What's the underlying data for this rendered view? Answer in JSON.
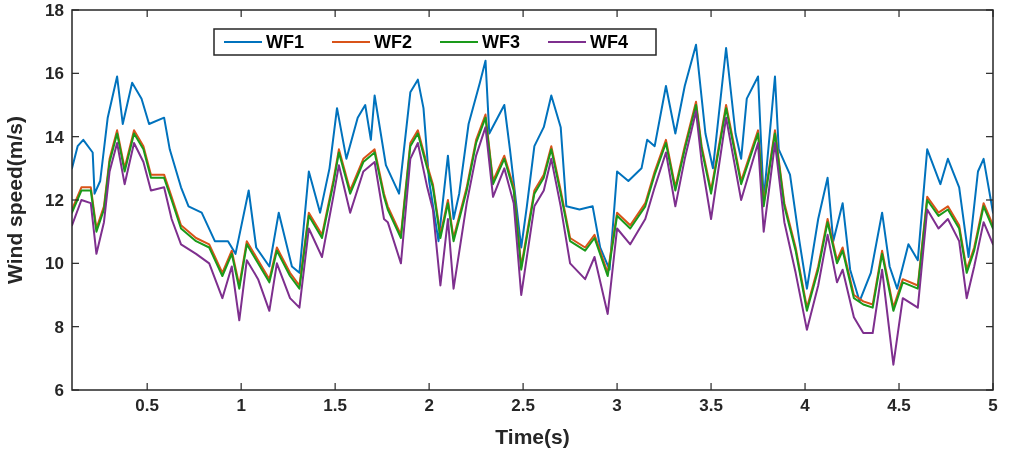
{
  "chart_data": {
    "type": "line",
    "xlabel": "Time(s)",
    "ylabel": "Wind speed(m/s)",
    "xlim": [
      0.1,
      5
    ],
    "xticks": [
      0.5,
      1,
      1.5,
      2,
      2.5,
      3,
      3.5,
      4,
      4.5,
      5
    ],
    "ylim": [
      6,
      18
    ],
    "yticks": [
      6,
      8,
      10,
      12,
      14,
      16,
      18
    ],
    "grid": false,
    "legend": "top",
    "line_style": "solid",
    "marker": "none",
    "series": [
      {
        "name": "WF1",
        "color": "#0072bd",
        "x": [
          0.1,
          0.13,
          0.16,
          0.21,
          0.22,
          0.25,
          0.29,
          0.34,
          0.37,
          0.42,
          0.47,
          0.51,
          0.59,
          0.62,
          0.68,
          0.72,
          0.79,
          0.86,
          0.93,
          0.97,
          1.04,
          1.08,
          1.15,
          1.2,
          1.27,
          1.31,
          1.36,
          1.42,
          1.47,
          1.51,
          1.56,
          1.62,
          1.66,
          1.69,
          1.71,
          1.77,
          1.84,
          1.9,
          1.94,
          1.97,
          2.0,
          2.05,
          2.1,
          2.13,
          2.16,
          2.21,
          2.27,
          2.3,
          2.32,
          2.4,
          2.43,
          2.49,
          2.52,
          2.56,
          2.61,
          2.65,
          2.7,
          2.73,
          2.8,
          2.87,
          2.91,
          2.96,
          3.0,
          3.06,
          3.13,
          3.16,
          3.2,
          3.26,
          3.31,
          3.36,
          3.42,
          3.47,
          3.51,
          3.58,
          3.63,
          3.66,
          3.69,
          3.75,
          3.78,
          3.84,
          3.86,
          3.92,
          3.97,
          4.01,
          4.07,
          4.12,
          4.15,
          4.2,
          4.24,
          4.29,
          4.35,
          4.41,
          4.45,
          4.49,
          4.55,
          4.6,
          4.65,
          4.72,
          4.76,
          4.82,
          4.87,
          4.92,
          4.95,
          5.0
        ],
        "values": [
          13.0,
          13.7,
          13.9,
          13.5,
          12.2,
          12.6,
          14.6,
          15.9,
          14.4,
          15.7,
          15.2,
          14.4,
          14.6,
          13.6,
          12.4,
          11.8,
          11.6,
          10.7,
          10.7,
          10.3,
          12.3,
          10.5,
          9.9,
          11.6,
          9.9,
          9.7,
          12.9,
          11.6,
          13.0,
          14.9,
          13.3,
          14.6,
          15.0,
          13.9,
          15.3,
          13.1,
          12.2,
          15.4,
          15.8,
          14.9,
          12.6,
          10.7,
          13.4,
          11.4,
          12.2,
          14.4,
          15.7,
          16.4,
          14.1,
          15.0,
          13.6,
          10.5,
          11.8,
          13.7,
          14.3,
          15.3,
          14.3,
          11.8,
          11.7,
          11.8,
          10.5,
          9.8,
          12.9,
          12.6,
          13.0,
          13.9,
          13.7,
          15.6,
          14.1,
          15.6,
          16.9,
          14.1,
          13.0,
          16.8,
          14.1,
          13.3,
          15.2,
          15.9,
          12.0,
          15.9,
          13.6,
          12.8,
          10.7,
          9.2,
          11.4,
          12.7,
          10.7,
          11.9,
          9.8,
          8.8,
          9.7,
          11.6,
          9.9,
          9.2,
          10.6,
          10.1,
          13.6,
          12.5,
          13.3,
          12.4,
          10.2,
          12.9,
          13.3,
          11.6
        ]
      },
      {
        "name": "WF2",
        "color": "#d95319",
        "x": [
          0.1,
          0.15,
          0.2,
          0.23,
          0.27,
          0.3,
          0.34,
          0.38,
          0.43,
          0.48,
          0.52,
          0.59,
          0.63,
          0.68,
          0.76,
          0.83,
          0.9,
          0.95,
          0.99,
          1.03,
          1.09,
          1.15,
          1.19,
          1.26,
          1.31,
          1.36,
          1.43,
          1.49,
          1.52,
          1.58,
          1.65,
          1.71,
          1.76,
          1.78,
          1.85,
          1.9,
          1.94,
          1.99,
          2.02,
          2.06,
          2.1,
          2.13,
          2.2,
          2.25,
          2.3,
          2.34,
          2.4,
          2.45,
          2.49,
          2.56,
          2.61,
          2.65,
          2.7,
          2.75,
          2.83,
          2.88,
          2.95,
          3.0,
          3.07,
          3.15,
          3.2,
          3.26,
          3.31,
          3.36,
          3.42,
          3.45,
          3.5,
          3.58,
          3.66,
          3.75,
          3.78,
          3.84,
          3.89,
          3.95,
          4.01,
          4.07,
          4.12,
          4.17,
          4.2,
          4.26,
          4.31,
          4.36,
          4.41,
          4.47,
          4.52,
          4.6,
          4.65,
          4.71,
          4.76,
          4.82,
          4.86,
          4.9,
          4.95,
          5.0
        ],
        "values": [
          11.7,
          12.4,
          12.4,
          11.1,
          11.8,
          13.3,
          14.2,
          13.0,
          14.2,
          13.7,
          12.8,
          12.8,
          12.1,
          11.2,
          10.8,
          10.6,
          9.7,
          10.4,
          9.3,
          10.7,
          10.1,
          9.5,
          10.5,
          9.7,
          9.3,
          11.6,
          10.9,
          12.6,
          13.6,
          12.3,
          13.3,
          13.6,
          12.2,
          11.8,
          10.9,
          13.8,
          14.2,
          13.1,
          12.5,
          10.9,
          12.0,
          10.8,
          12.4,
          13.9,
          14.7,
          12.6,
          13.4,
          12.4,
          9.9,
          12.3,
          12.8,
          13.7,
          12.3,
          10.8,
          10.5,
          10.9,
          9.7,
          11.6,
          11.2,
          11.9,
          12.9,
          13.9,
          12.4,
          13.7,
          15.1,
          13.7,
          12.3,
          15.0,
          12.6,
          14.2,
          11.9,
          14.2,
          11.9,
          10.5,
          8.6,
          9.9,
          11.4,
          10.1,
          10.5,
          9.0,
          8.8,
          8.7,
          10.4,
          8.6,
          9.5,
          9.3,
          12.1,
          11.6,
          11.8,
          11.2,
          9.8,
          10.5,
          11.9,
          11.2
        ]
      },
      {
        "name": "WF3",
        "color": "#1a9a1a",
        "x": [
          0.1,
          0.15,
          0.2,
          0.23,
          0.27,
          0.3,
          0.34,
          0.38,
          0.43,
          0.48,
          0.52,
          0.59,
          0.63,
          0.68,
          0.76,
          0.83,
          0.9,
          0.95,
          0.99,
          1.03,
          1.09,
          1.15,
          1.19,
          1.26,
          1.31,
          1.36,
          1.43,
          1.49,
          1.52,
          1.58,
          1.65,
          1.71,
          1.76,
          1.78,
          1.85,
          1.9,
          1.94,
          1.99,
          2.02,
          2.06,
          2.1,
          2.13,
          2.2,
          2.25,
          2.3,
          2.34,
          2.4,
          2.45,
          2.49,
          2.56,
          2.61,
          2.65,
          2.7,
          2.75,
          2.83,
          2.88,
          2.95,
          3.0,
          3.07,
          3.15,
          3.2,
          3.26,
          3.31,
          3.36,
          3.42,
          3.45,
          3.5,
          3.58,
          3.66,
          3.75,
          3.78,
          3.84,
          3.89,
          3.95,
          4.01,
          4.07,
          4.12,
          4.17,
          4.2,
          4.26,
          4.31,
          4.36,
          4.41,
          4.47,
          4.52,
          4.6,
          4.65,
          4.71,
          4.76,
          4.82,
          4.86,
          4.9,
          4.95,
          5.0
        ],
        "values": [
          11.6,
          12.3,
          12.3,
          11.0,
          11.7,
          13.2,
          14.1,
          12.9,
          14.1,
          13.6,
          12.7,
          12.7,
          12.0,
          11.1,
          10.7,
          10.5,
          9.6,
          10.3,
          9.2,
          10.6,
          10.0,
          9.4,
          10.4,
          9.6,
          9.2,
          11.5,
          10.8,
          12.5,
          13.5,
          12.2,
          13.2,
          13.5,
          12.1,
          11.7,
          10.8,
          13.7,
          14.1,
          13.0,
          12.4,
          10.8,
          11.9,
          10.7,
          12.3,
          13.8,
          14.6,
          12.5,
          13.3,
          12.3,
          9.8,
          12.2,
          12.7,
          13.6,
          12.2,
          10.7,
          10.4,
          10.8,
          9.6,
          11.5,
          11.1,
          11.8,
          12.8,
          13.8,
          12.3,
          13.6,
          15.0,
          13.6,
          12.2,
          14.9,
          12.5,
          14.1,
          11.8,
          14.1,
          11.8,
          10.4,
          8.5,
          9.8,
          11.3,
          10.0,
          10.4,
          8.9,
          8.7,
          8.6,
          10.3,
          8.5,
          9.4,
          9.2,
          12.0,
          11.5,
          11.7,
          11.1,
          9.7,
          10.4,
          11.8,
          11.1
        ]
      },
      {
        "name": "WF4",
        "color": "#7e2f8e",
        "x": [
          0.1,
          0.15,
          0.2,
          0.23,
          0.27,
          0.3,
          0.34,
          0.38,
          0.43,
          0.48,
          0.52,
          0.59,
          0.63,
          0.68,
          0.76,
          0.83,
          0.9,
          0.95,
          0.99,
          1.03,
          1.09,
          1.15,
          1.19,
          1.26,
          1.31,
          1.36,
          1.43,
          1.49,
          1.52,
          1.58,
          1.65,
          1.71,
          1.76,
          1.78,
          1.85,
          1.9,
          1.94,
          1.99,
          2.02,
          2.06,
          2.1,
          2.13,
          2.2,
          2.25,
          2.3,
          2.34,
          2.4,
          2.45,
          2.49,
          2.56,
          2.61,
          2.65,
          2.7,
          2.75,
          2.83,
          2.88,
          2.95,
          3.0,
          3.07,
          3.15,
          3.2,
          3.26,
          3.31,
          3.36,
          3.42,
          3.45,
          3.5,
          3.58,
          3.66,
          3.75,
          3.78,
          3.84,
          3.89,
          3.95,
          4.01,
          4.07,
          4.12,
          4.17,
          4.2,
          4.26,
          4.31,
          4.36,
          4.41,
          4.47,
          4.52,
          4.6,
          4.65,
          4.71,
          4.76,
          4.82,
          4.86,
          4.9,
          4.95,
          5.0
        ],
        "values": [
          11.2,
          12.0,
          11.9,
          10.3,
          11.3,
          12.9,
          13.8,
          12.5,
          13.8,
          13.2,
          12.3,
          12.4,
          11.4,
          10.6,
          10.3,
          10.0,
          8.9,
          9.9,
          8.2,
          10.1,
          9.5,
          8.5,
          10.0,
          8.9,
          8.6,
          11.1,
          10.2,
          12.1,
          13.1,
          11.6,
          12.9,
          13.2,
          11.4,
          11.3,
          10.0,
          13.3,
          13.8,
          12.4,
          11.7,
          9.3,
          11.4,
          9.2,
          11.9,
          13.4,
          14.3,
          12.1,
          13.0,
          11.9,
          9.0,
          11.8,
          12.3,
          13.3,
          11.8,
          10.0,
          9.5,
          10.2,
          8.4,
          11.1,
          10.6,
          11.4,
          12.4,
          13.5,
          11.8,
          13.3,
          14.8,
          13.2,
          11.4,
          14.6,
          12.0,
          13.8,
          11.0,
          13.8,
          11.3,
          9.7,
          7.9,
          9.3,
          10.9,
          9.4,
          9.8,
          8.3,
          7.8,
          7.8,
          9.8,
          6.8,
          8.9,
          8.6,
          11.7,
          11.1,
          11.4,
          10.7,
          8.9,
          9.9,
          11.3,
          10.6
        ]
      }
    ]
  }
}
